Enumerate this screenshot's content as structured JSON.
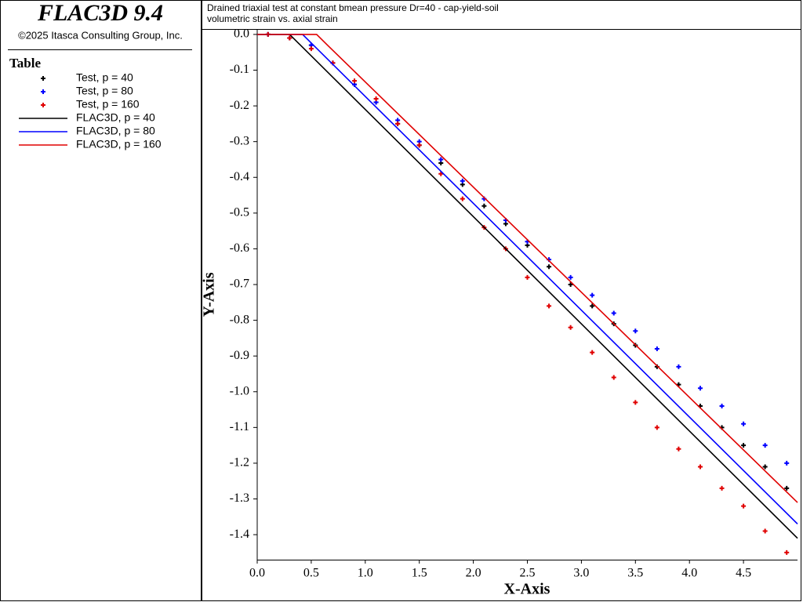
{
  "app": {
    "name": "FLAC3D 9.4",
    "copyright": "©2025 Itasca Consulting Group, Inc."
  },
  "chart_data": {
    "type": "scatter",
    "title": "Drained triaxial test at constant bmean pressure Dr=40 - cap-yield-soil",
    "subtitle": "volumetric strain vs. axial strain",
    "xlabel": "X-Axis",
    "ylabel": "Y-Axis",
    "legend_title": "Table",
    "xlim": [
      0,
      5.0
    ],
    "ylim": [
      -1.47,
      0.013
    ],
    "xticks": [
      {
        "value": 0,
        "label": "0.0"
      },
      0.5,
      {
        "value": 1,
        "label": "1.0"
      },
      1.5,
      {
        "value": 2,
        "label": "2.0"
      },
      2.5,
      {
        "value": 3,
        "label": "3.0"
      },
      3.5,
      {
        "value": 4,
        "label": "4.0"
      },
      4.5
    ],
    "yticks": [
      {
        "value": 0,
        "label": "0.0"
      },
      -0.1,
      -0.2,
      -0.3,
      -0.4,
      -0.5,
      -0.6,
      -0.7,
      -0.8,
      -0.9,
      {
        "value": -1,
        "label": "-1.0"
      },
      -1.1,
      -1.2,
      -1.3,
      -1.4
    ],
    "series": [
      {
        "name": "Test, p = 40",
        "type": "scatter",
        "color": "#000000",
        "x": [
          0.1,
          0.3,
          0.5,
          0.7,
          0.9,
          1.1,
          1.3,
          1.5,
          1.7,
          1.9,
          2.1,
          2.3,
          2.5,
          2.7,
          2.9,
          3.1,
          3.3,
          3.5,
          3.7,
          3.9,
          4.1,
          4.3,
          4.5,
          4.7,
          4.9
        ],
        "values": [
          0,
          -0.01,
          -0.03,
          -0.08,
          -0.14,
          -0.19,
          -0.25,
          -0.31,
          -0.36,
          -0.42,
          -0.48,
          -0.53,
          -0.59,
          -0.65,
          -0.7,
          -0.76,
          -0.81,
          -0.87,
          -0.93,
          -0.98,
          -1.04,
          -1.1,
          -1.15,
          -1.21,
          -1.27
        ]
      },
      {
        "name": "Test, p = 80",
        "type": "scatter",
        "color": "#0000ff",
        "x": [
          0.1,
          0.3,
          0.5,
          0.7,
          0.9,
          1.1,
          1.3,
          1.5,
          1.7,
          1.9,
          2.1,
          2.3,
          2.5,
          2.7,
          2.9,
          3.1,
          3.3,
          3.5,
          3.7,
          3.9,
          4.1,
          4.3,
          4.5,
          4.7,
          4.9
        ],
        "values": [
          0,
          -0.01,
          -0.03,
          -0.08,
          -0.14,
          -0.19,
          -0.24,
          -0.3,
          -0.35,
          -0.41,
          -0.46,
          -0.52,
          -0.58,
          -0.63,
          -0.68,
          -0.73,
          -0.78,
          -0.83,
          -0.88,
          -0.93,
          -0.99,
          -1.04,
          -1.09,
          -1.15,
          -1.2
        ]
      },
      {
        "name": "Test, p = 160",
        "type": "scatter",
        "color": "#e00000",
        "x": [
          0.1,
          0.3,
          0.5,
          0.7,
          0.9,
          1.1,
          1.3,
          1.5,
          1.7,
          1.9,
          2.1,
          2.3,
          2.5,
          2.7,
          2.9,
          3.1,
          3.3,
          3.5,
          3.7,
          3.9,
          4.1,
          4.3,
          4.5,
          4.7,
          4.9
        ],
        "values": [
          0,
          -0.01,
          -0.04,
          -0.08,
          -0.13,
          -0.18,
          -0.25,
          -0.31,
          -0.39,
          -0.46,
          -0.54,
          -0.6,
          -0.68,
          -0.76,
          -0.82,
          -0.89,
          -0.96,
          -1.03,
          -1.1,
          -1.16,
          -1.21,
          -1.27,
          -1.32,
          -1.39,
          -1.45
        ]
      },
      {
        "name": "FLAC3D, p = 40",
        "type": "line",
        "color": "#000000",
        "x": [
          0,
          0.3,
          0.4,
          5.0
        ],
        "values": [
          0,
          0,
          -0.03,
          -1.41
        ]
      },
      {
        "name": "FLAC3D, p = 80",
        "type": "line",
        "color": "#0000ff",
        "x": [
          0,
          0.42,
          0.52,
          5.0
        ],
        "values": [
          0,
          0,
          -0.03,
          -1.37
        ]
      },
      {
        "name": "FLAC3D, p = 160",
        "type": "line",
        "color": "#e00000",
        "x": [
          0,
          0.55,
          0.65,
          5.0
        ],
        "values": [
          0,
          0,
          -0.03,
          -1.31
        ]
      }
    ]
  }
}
